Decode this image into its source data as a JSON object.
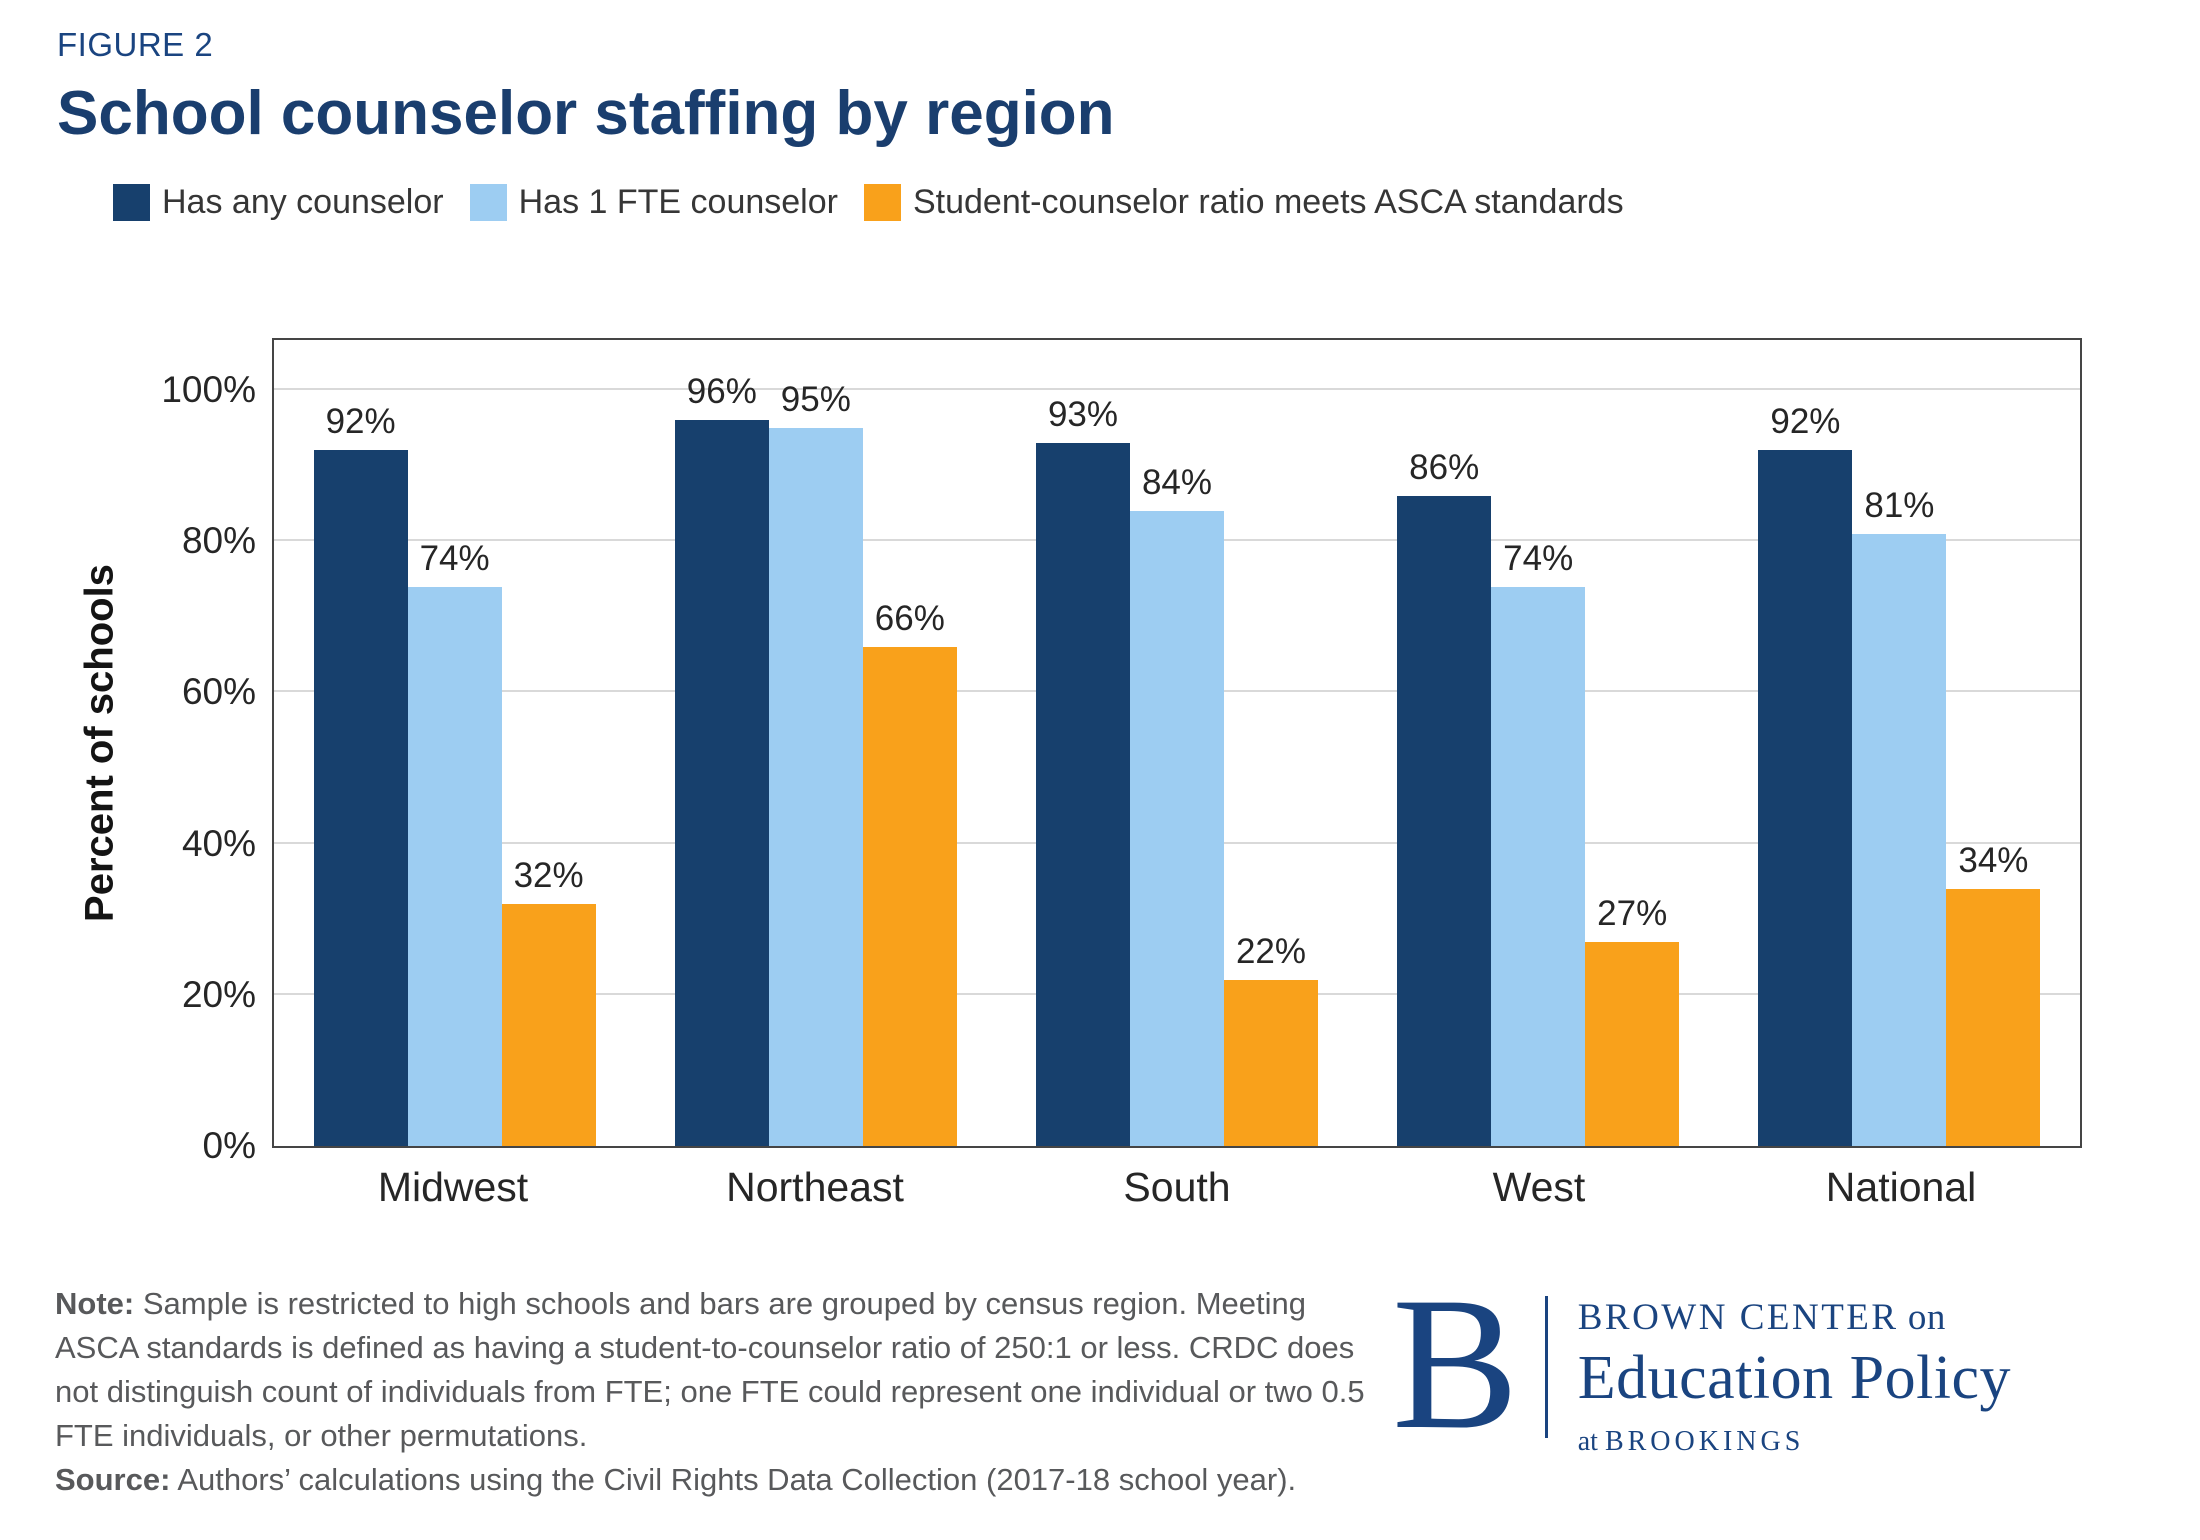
{
  "figure_label": "FIGURE 2",
  "title": "School counselor staffing by region",
  "chart_data": {
    "type": "bar",
    "categories": [
      "Midwest",
      "Northeast",
      "South",
      "West",
      "National"
    ],
    "series": [
      {
        "name": "Has any counselor",
        "color": "#17406d",
        "values": [
          92,
          96,
          93,
          86,
          92
        ]
      },
      {
        "name": "Has 1 FTE counselor",
        "color": "#9dcdf2",
        "values": [
          74,
          95,
          84,
          74,
          81
        ]
      },
      {
        "name": "Student-counselor ratio meets ASCA standards",
        "color": "#f9a11b",
        "values": [
          32,
          66,
          22,
          27,
          34
        ]
      }
    ],
    "title": "School counselor staffing by region",
    "xlabel": "",
    "ylabel": "Percent of schools",
    "ylim": [
      0,
      100
    ],
    "yticks": [
      0,
      20,
      40,
      60,
      80,
      100
    ],
    "tick_suffix": "%",
    "grid": true,
    "legend_position": "top",
    "value_labels": true,
    "gridline_color": "#d9d9d9",
    "frame_color": "#454545"
  },
  "notes": {
    "note_label": "Note:",
    "note_text": "Sample is restricted to high schools and bars are grouped by census region. Meeting ASCA standards is defined as having a student-to-counselor ratio of 250:1 or less. CRDC does not distinguish count of individuals from FTE; one FTE could represent one individual or two 0.5 FTE individuals, or other permutations.",
    "source_label": "Source:",
    "source_text": "Authors’ calculations using the Civil Rights Data Collection (2017-18 school year)."
  },
  "logo": {
    "monogram": "B",
    "line1_caps": "BROWN CENTER",
    "line1_small": "on",
    "line2": "Education Policy",
    "line3_small": "at",
    "line3_caps": "BROOKINGS",
    "color": "#1a4480"
  }
}
